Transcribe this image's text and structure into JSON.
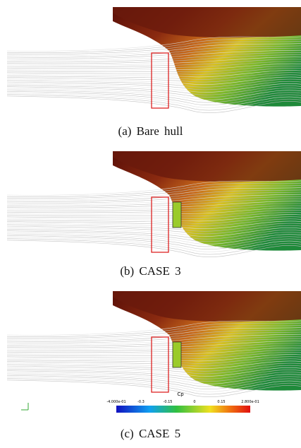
{
  "figure": {
    "panels": [
      {
        "caption": "(a) Bare hull"
      },
      {
        "caption": "(b) CASE 3"
      },
      {
        "caption": "(c) CASE 5"
      }
    ],
    "colorbar": {
      "title": "Cp",
      "tick_labels": [
        "-4.000e-01",
        "-0.3",
        "-0.15",
        "0",
        "0.15",
        "2.800e-01"
      ]
    }
  }
}
